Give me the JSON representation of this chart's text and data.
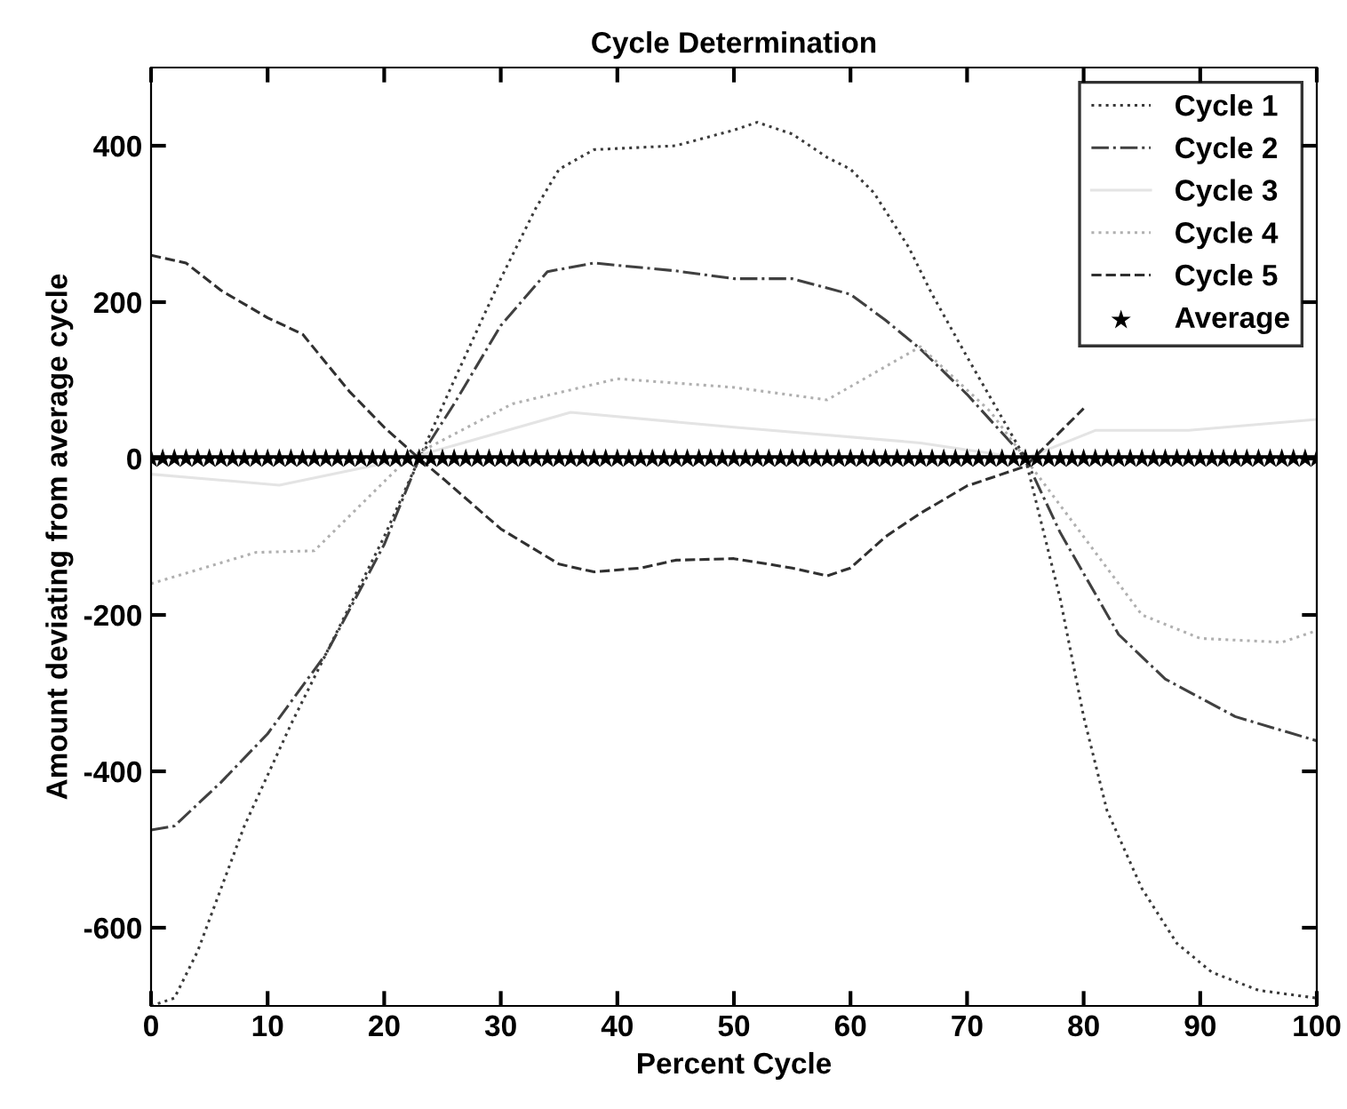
{
  "chart_data": {
    "type": "line",
    "title": "Cycle Determination",
    "xlabel": "Percent Cycle",
    "ylabel": "Amount deviating from average cycle",
    "xlim": [
      0,
      100
    ],
    "ylim": [
      -700,
      500
    ],
    "xticks": [
      0,
      10,
      20,
      30,
      40,
      50,
      60,
      70,
      80,
      90,
      100
    ],
    "yticks": [
      -600,
      -400,
      -200,
      0,
      200,
      400
    ],
    "grid": false,
    "legend": "top right",
    "series": [
      {
        "name": "Cycle 1",
        "color": "#3a3a3a",
        "line_style": "dotted",
        "x": [
          0,
          2,
          4,
          8,
          12,
          16,
          20,
          23,
          26,
          30,
          33,
          35,
          38,
          45,
          50,
          52,
          55,
          58,
          60,
          62,
          65,
          67,
          70,
          75,
          78,
          80,
          82,
          85,
          88,
          91,
          95,
          100
        ],
        "values": [
          -700,
          -690,
          -630,
          -470,
          -340,
          -220,
          -100,
          0,
          100,
          230,
          320,
          370,
          395,
          400,
          420,
          430,
          415,
          385,
          370,
          340,
          270,
          210,
          130,
          0,
          -180,
          -330,
          -450,
          -550,
          -620,
          -657,
          -680,
          -690
        ]
      },
      {
        "name": "Cycle 2",
        "color": "#404040",
        "line_style": "dashdot",
        "x": [
          0,
          2,
          6,
          10,
          15,
          20,
          23,
          26,
          30,
          34,
          38,
          45,
          50,
          55,
          60,
          63,
          66,
          70,
          75,
          78,
          83,
          87,
          93,
          100
        ],
        "values": [
          -475,
          -470,
          -414,
          -352,
          -250,
          -110,
          0,
          70,
          170,
          239,
          250,
          240,
          230,
          230,
          210,
          177,
          140,
          82,
          0,
          -95,
          -225,
          -282,
          -330,
          -361
        ]
      },
      {
        "name": "Cycle 3",
        "color": "#e4e4e4",
        "line_style": "solid",
        "x": [
          0,
          11,
          22,
          36,
          50,
          66,
          75,
          81,
          89,
          100
        ],
        "values": [
          -20,
          -34,
          0,
          59,
          40,
          20,
          0,
          36,
          36,
          50
        ]
      },
      {
        "name": "Cycle 4",
        "color": "#b0b0b0",
        "line_style": "dotted",
        "x": [
          0,
          9,
          14,
          22,
          31,
          40,
          50,
          58,
          66,
          72,
          75,
          80,
          85,
          90,
          97,
          100
        ],
        "values": [
          -160,
          -120,
          -118,
          0,
          70,
          102,
          91,
          75,
          143,
          60,
          0,
          -100,
          -200,
          -230,
          -235,
          -220
        ]
      },
      {
        "name": "Cycle 5",
        "color": "#303030",
        "line_style": "dashed",
        "x": [
          0,
          3,
          6,
          10,
          13,
          17,
          20,
          23,
          25,
          30,
          35,
          38,
          42,
          45,
          50,
          55,
          58,
          60,
          63,
          66,
          70,
          75,
          80
        ],
        "values": [
          260,
          250,
          215,
          180,
          159,
          86,
          40,
          0,
          -25,
          -90,
          -135,
          -145,
          -140,
          -130,
          -128,
          -140,
          -150,
          -140,
          -100,
          -70,
          -35,
          -10,
          64
        ]
      },
      {
        "name": "Average",
        "color": "#000000",
        "type": "scatter",
        "marker": "star",
        "x": [
          0,
          1,
          2,
          3,
          4,
          5,
          6,
          7,
          8,
          9,
          10,
          11,
          12,
          13,
          14,
          15,
          16,
          17,
          18,
          19,
          20,
          21,
          22,
          23,
          24,
          25,
          26,
          27,
          28,
          29,
          30,
          31,
          32,
          33,
          34,
          35,
          36,
          37,
          38,
          39,
          40,
          41,
          42,
          43,
          44,
          45,
          46,
          47,
          48,
          49,
          50,
          51,
          52,
          53,
          54,
          55,
          56,
          57,
          58,
          59,
          60,
          61,
          62,
          63,
          64,
          65,
          66,
          67,
          68,
          69,
          70,
          71,
          72,
          73,
          74,
          75,
          76,
          77,
          78,
          79,
          80,
          81,
          82,
          83,
          84,
          85,
          86,
          87,
          88,
          89,
          90,
          91,
          92,
          93,
          94,
          95,
          96,
          97,
          98,
          99,
          100
        ],
        "values": [
          0,
          0,
          0,
          0,
          0,
          0,
          0,
          0,
          0,
          0,
          0,
          0,
          0,
          0,
          0,
          0,
          0,
          0,
          0,
          0,
          0,
          0,
          0,
          0,
          0,
          0,
          0,
          0,
          0,
          0,
          0,
          0,
          0,
          0,
          0,
          0,
          0,
          0,
          0,
          0,
          0,
          0,
          0,
          0,
          0,
          0,
          0,
          0,
          0,
          0,
          0,
          0,
          0,
          0,
          0,
          0,
          0,
          0,
          0,
          0,
          0,
          0,
          0,
          0,
          0,
          0,
          0,
          0,
          0,
          0,
          0,
          0,
          0,
          0,
          0,
          0,
          0,
          0,
          0,
          0,
          0,
          0,
          0,
          0,
          0,
          0,
          0,
          0,
          0,
          0,
          0,
          0,
          0,
          0,
          0,
          0,
          0,
          0,
          0,
          0,
          0
        ]
      }
    ]
  }
}
